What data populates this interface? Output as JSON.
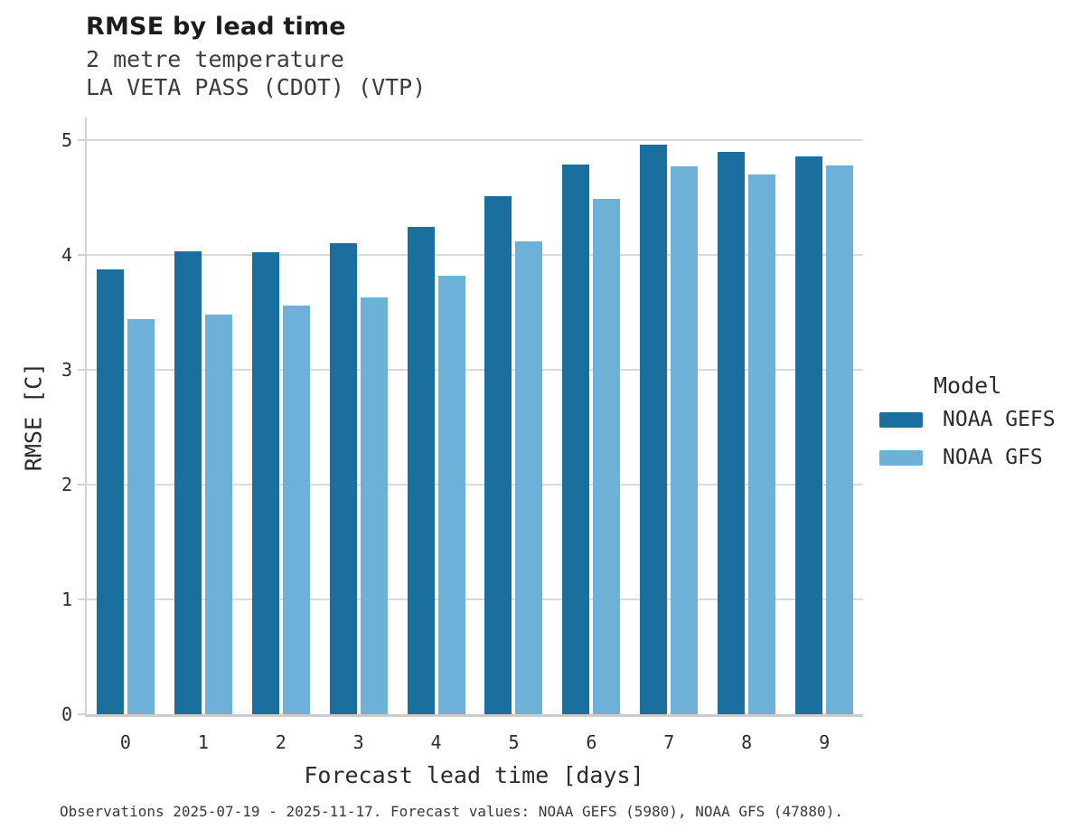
{
  "header": {
    "title": "RMSE by lead time",
    "subtitle_line1": "2 metre temperature",
    "subtitle_line2": "LA VETA PASS (CDOT) (VTP)"
  },
  "chart_data": {
    "type": "bar",
    "title": "RMSE by lead time",
    "subtitle": [
      "2 metre temperature",
      "LA VETA PASS (CDOT) (VTP)"
    ],
    "categories": [
      "0",
      "1",
      "2",
      "3",
      "4",
      "5",
      "6",
      "7",
      "8",
      "9"
    ],
    "series": [
      {
        "name": "NOAA GEFS",
        "color": "#1b6f9e",
        "values": [
          3.87,
          4.03,
          4.02,
          4.1,
          4.24,
          4.51,
          4.79,
          4.96,
          4.9,
          4.86
        ]
      },
      {
        "name": "NOAA GFS",
        "color": "#6db1d9",
        "values": [
          3.44,
          3.48,
          3.56,
          3.63,
          3.82,
          4.12,
          4.49,
          4.77,
          4.7,
          4.78
        ]
      }
    ],
    "xlabel": "Forecast lead time [days]",
    "ylabel": "RMSE [C]",
    "ylim": [
      0,
      5.22
    ],
    "yticks": [
      0,
      1,
      2,
      3,
      4,
      5
    ],
    "grid": true,
    "legend_position": "right",
    "legend_title": "Model"
  },
  "legend": {
    "title": "Model",
    "items": [
      {
        "label": "NOAA GEFS",
        "color": "#1b6f9e"
      },
      {
        "label": "NOAA GFS",
        "color": "#6db1d9"
      }
    ]
  },
  "caption": "Observations 2025-07-19 - 2025-11-17. Forecast values: NOAA GEFS (5980), NOAA GFS (47880).",
  "colors": {
    "gefs": "#1b6f9e",
    "gfs": "#6db1d9",
    "gridline": "#dadada",
    "axis": "#cbcbcb",
    "text": "#2b2b2b"
  }
}
